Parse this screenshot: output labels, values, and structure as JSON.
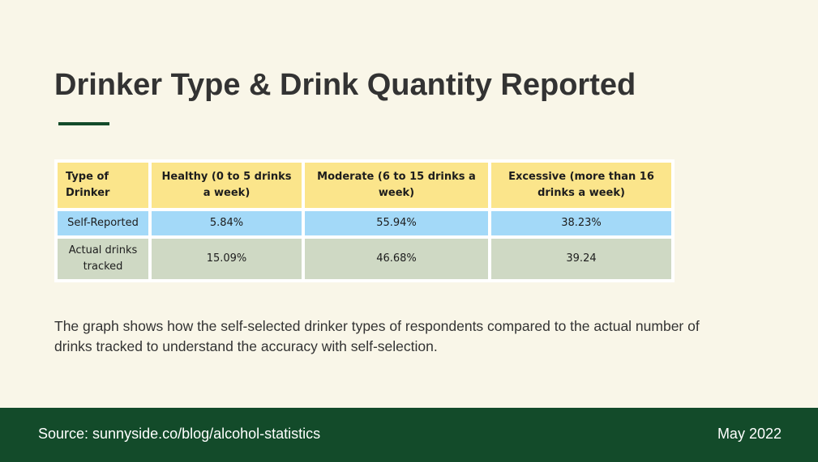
{
  "slide": {
    "title": "Drinker Type & Drink Quantity Reported",
    "description": "The graph shows how the self-selected drinker types of respondents compared to the actual number of drinks tracked to understand the accuracy with self-selection."
  },
  "table": {
    "headers": [
      "Type of Drinker",
      "Healthy (0 to 5 drinks a week)",
      "Moderate (6 to 15 drinks a week)",
      "Excessive (more than 16 drinks a week)"
    ],
    "rows": [
      [
        "Self-Reported",
        "5.84%",
        "55.94%",
        "38.23%"
      ],
      [
        "Actual drinks tracked",
        "15.09%",
        "46.68%",
        "39.24"
      ]
    ]
  },
  "footer": {
    "source": "Source: sunnyside.co/blog/alcohol-statistics",
    "date": "May 2022"
  },
  "colors": {
    "background": "#f9f6e8",
    "accent_green": "#134b2a",
    "header_yellow": "#fbe58b",
    "self_reported_blue": "#a3d9f8",
    "actual_sage": "#cfd9c4"
  }
}
